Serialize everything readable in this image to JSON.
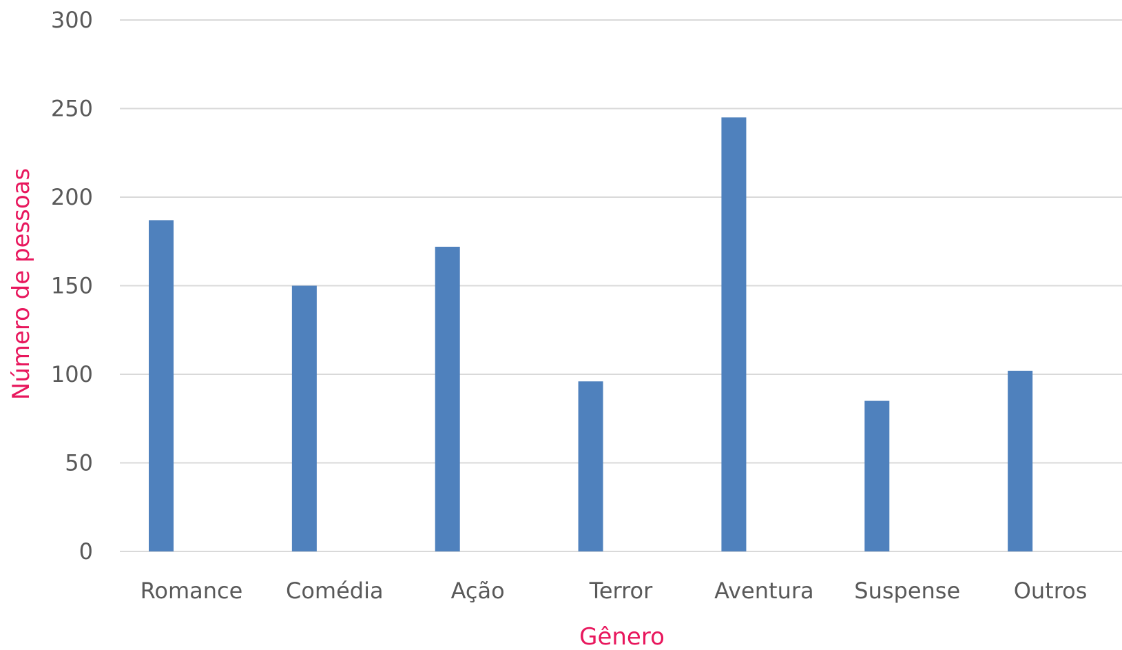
{
  "chart_data": {
    "type": "bar",
    "categories": [
      "Romance",
      "Comédia",
      "Ação",
      "Terror",
      "Aventura",
      "Suspense",
      "Outros"
    ],
    "values": [
      187,
      150,
      172,
      96,
      245,
      85,
      102
    ],
    "title": "",
    "xlabel": "Gênero",
    "ylabel": "Número de pessoas",
    "ylim": [
      0,
      300
    ],
    "yticks": [
      0,
      50,
      100,
      150,
      200,
      250,
      300
    ],
    "grid": true,
    "legend": "none",
    "colors": {
      "bar": "#4f81bd",
      "axis_title": "#e8175d",
      "tick_label": "#595959",
      "grid": "#d9d9d9"
    }
  }
}
